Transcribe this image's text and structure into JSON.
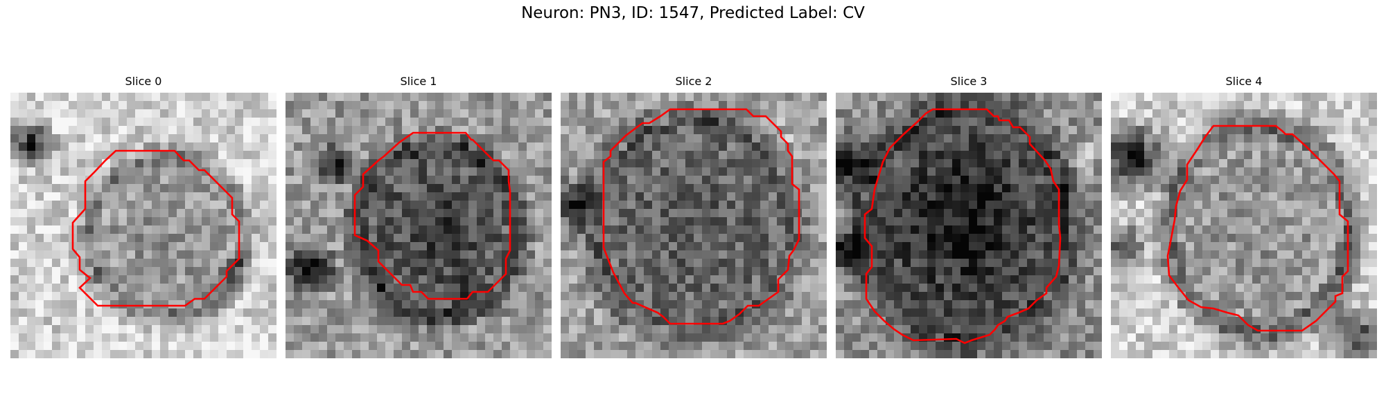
{
  "figure": {
    "title": "Neuron: PN3, ID: 1547, Predicted Label: CV"
  },
  "colors": {
    "contour": "#ff0000",
    "background": "#ffffff"
  },
  "panels": [
    {
      "label": "Slice 0",
      "image": "grayscale-pixel-patch",
      "overlay": "red-contour-outline"
    },
    {
      "label": "Slice 1",
      "image": "grayscale-pixel-patch",
      "overlay": "red-contour-outline"
    },
    {
      "label": "Slice 2",
      "image": "grayscale-pixel-patch",
      "overlay": "red-contour-outline"
    },
    {
      "label": "Slice 3",
      "image": "grayscale-pixel-patch",
      "overlay": "red-contour-outline"
    },
    {
      "label": "Slice 4",
      "image": "grayscale-pixel-patch",
      "overlay": "red-contour-outline"
    }
  ]
}
